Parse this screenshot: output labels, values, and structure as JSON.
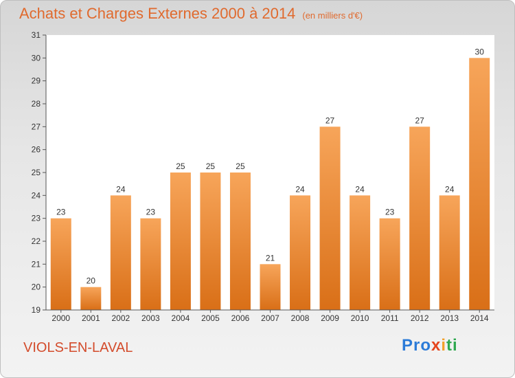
{
  "header": {
    "title": "Achats et Charges Externes 2000 à 2014",
    "subtitle": "(en milliers d'€)"
  },
  "footer": {
    "commune": "VIOLS-EN-LAVAL",
    "logo_parts": [
      "Pro",
      "x",
      "i",
      "ti"
    ]
  },
  "colors": {
    "bar_top": "#f7a55a",
    "bar_bottom": "#d96f17",
    "title": "#e06a2e",
    "commune": "#d34b2b",
    "plot_bg": "#ffffff"
  },
  "chart_data": {
    "type": "bar",
    "categories": [
      "2000",
      "2001",
      "2002",
      "2003",
      "2004",
      "2005",
      "2006",
      "2007",
      "2008",
      "2009",
      "2010",
      "2011",
      "2012",
      "2013",
      "2014"
    ],
    "values": [
      23,
      20,
      24,
      23,
      25,
      25,
      25,
      21,
      24,
      27,
      24,
      23,
      27,
      24,
      30
    ],
    "title": "Achats et Charges Externes 2000 à 2014",
    "subtitle": "(en milliers d'€)",
    "xlabel": "",
    "ylabel": "",
    "ylim": [
      19,
      31
    ],
    "yticks": [
      19,
      20,
      21,
      22,
      23,
      24,
      25,
      26,
      27,
      28,
      29,
      30,
      31
    ],
    "grid": false,
    "legend": "none"
  }
}
